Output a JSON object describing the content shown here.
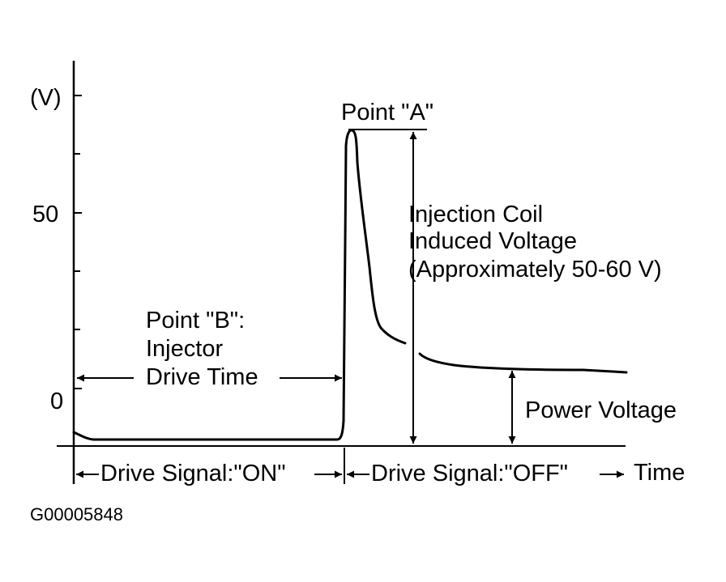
{
  "y_axis": {
    "unit": "(V)",
    "ticks": [
      "50",
      "0"
    ]
  },
  "x_axis": {
    "label": "Time"
  },
  "annotations": {
    "point_a": "Point \"A\"",
    "coil_voltage": [
      "Injection Coil",
      "Induced Voltage",
      "(Approximately 50-60 V)"
    ],
    "point_b": [
      "Point \"B\":",
      "Injector",
      "Drive Time"
    ],
    "power_voltage": "Power Voltage",
    "drive_on": "Drive Signal:\"ON\"",
    "drive_off": "Drive Signal:\"OFF\""
  },
  "figure_id": "G00005848",
  "colors": {
    "ink": "#000000",
    "background": "#ffffff"
  }
}
